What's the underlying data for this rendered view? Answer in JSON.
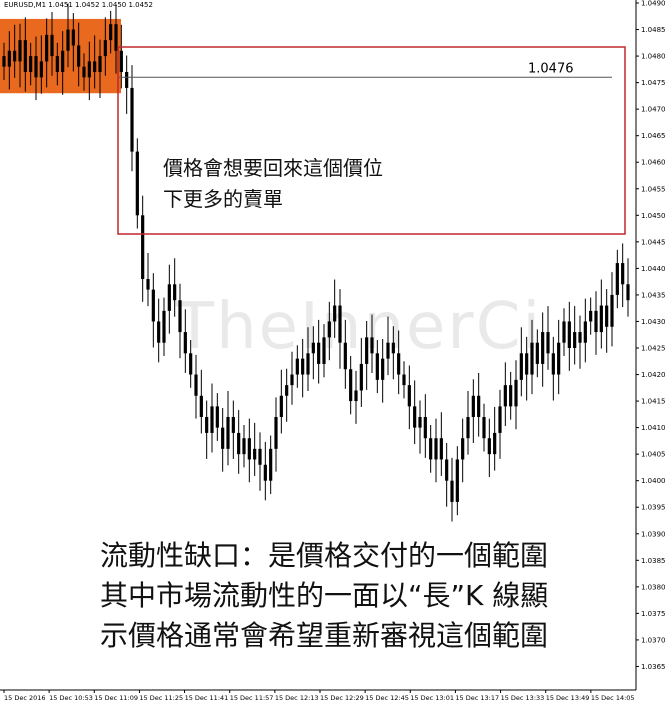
{
  "chart_header": {
    "symbol_label": "EURUSD,M1  1.0451 1.0452 1.0450 1.0452"
  },
  "colors": {
    "candle": "#000000",
    "zone_fill": "#e96a1f",
    "box_stroke": "#c0282b",
    "level_line": "#555555",
    "grid_background": "#ffffff"
  },
  "watermark": "TheInnerCi",
  "annotations": {
    "level_label": "1.0476",
    "box_text": [
      "價格會想要回來這個價位",
      "下更多的賣單"
    ],
    "caption": [
      "流動性缺口：是價格交付的一個範圍",
      "其中市場流動性的一面以“長”K 線顯",
      "示價格通常會希望重新審視這個範圍"
    ]
  },
  "chart_data": {
    "type": "candlestick",
    "title": "",
    "xlabel": "",
    "ylabel": "",
    "ylim": [
      1.036,
      1.049
    ],
    "y_ticks": [
      "1.0490",
      "1.0485",
      "1.0480",
      "1.0475",
      "1.0470",
      "1.0465",
      "1.0460",
      "1.0455",
      "1.0450",
      "1.0445",
      "1.0440",
      "1.0435",
      "1.0430",
      "1.0425",
      "1.0420",
      "1.0415",
      "1.0410",
      "1.0405",
      "1.0400",
      "1.0395",
      "1.0390",
      "1.0385",
      "1.0380",
      "1.0375",
      "1.0370",
      "1.0365"
    ],
    "x_ticks": [
      "15 Dec 2016",
      "15 Dec 10:53",
      "15 Dec 11:09",
      "15 Dec 11:25",
      "15 Dec 11:41",
      "15 Dec 11:57",
      "15 Dec 12:13",
      "15 Dec 12:29",
      "15 Dec 12:45",
      "15 Dec 13:01",
      "15 Dec 13:17",
      "15 Dec 13:33",
      "15 Dec 13:49",
      "15 Dec 14:05"
    ],
    "level": 1.0476,
    "zone": {
      "low": 1.0473,
      "high": 1.0487
    },
    "series": [
      {
        "values": [
          1.0478,
          1.0481,
          1.0479,
          1.0483,
          1.0477,
          1.048,
          1.0476,
          1.0479,
          1.0484,
          1.048,
          1.0477,
          1.0481,
          1.0485,
          1.0482,
          1.0478,
          1.0476,
          1.0479,
          1.0477,
          1.048,
          1.0483,
          1.0486,
          1.0481,
          1.0477,
          1.0474,
          1.0462,
          1.045,
          1.0438,
          1.0436,
          1.043,
          1.0426,
          1.0432,
          1.0437,
          1.0434,
          1.0428,
          1.0424,
          1.042,
          1.0416,
          1.0412,
          1.0409,
          1.0414,
          1.041,
          1.0406,
          1.0412,
          1.0409,
          1.0405,
          1.0408,
          1.0404,
          1.0406,
          1.0403,
          1.04,
          1.0406,
          1.0412,
          1.0416,
          1.0418,
          1.042,
          1.0423,
          1.042,
          1.0424,
          1.0426,
          1.0422,
          1.0427,
          1.043,
          1.0433,
          1.0426,
          1.0421,
          1.0415,
          1.0417,
          1.0422,
          1.0427,
          1.0424,
          1.0419,
          1.0423,
          1.0426,
          1.0424,
          1.042,
          1.0418,
          1.0414,
          1.041,
          1.0412,
          1.0408,
          1.0404,
          1.0408,
          1.0404,
          1.04,
          1.0396,
          1.0404,
          1.0408,
          1.0412,
          1.0416,
          1.0412,
          1.0408,
          1.0405,
          1.0409,
          1.0414,
          1.0418,
          1.0414,
          1.0419,
          1.0424,
          1.042,
          1.0426,
          1.0422,
          1.0428,
          1.0424,
          1.042,
          1.0426,
          1.043,
          1.0425,
          1.0428,
          1.0426,
          1.043,
          1.0432,
          1.0428,
          1.0433,
          1.0429,
          1.0435,
          1.0441,
          1.0437,
          1.0434
        ]
      }
    ]
  }
}
